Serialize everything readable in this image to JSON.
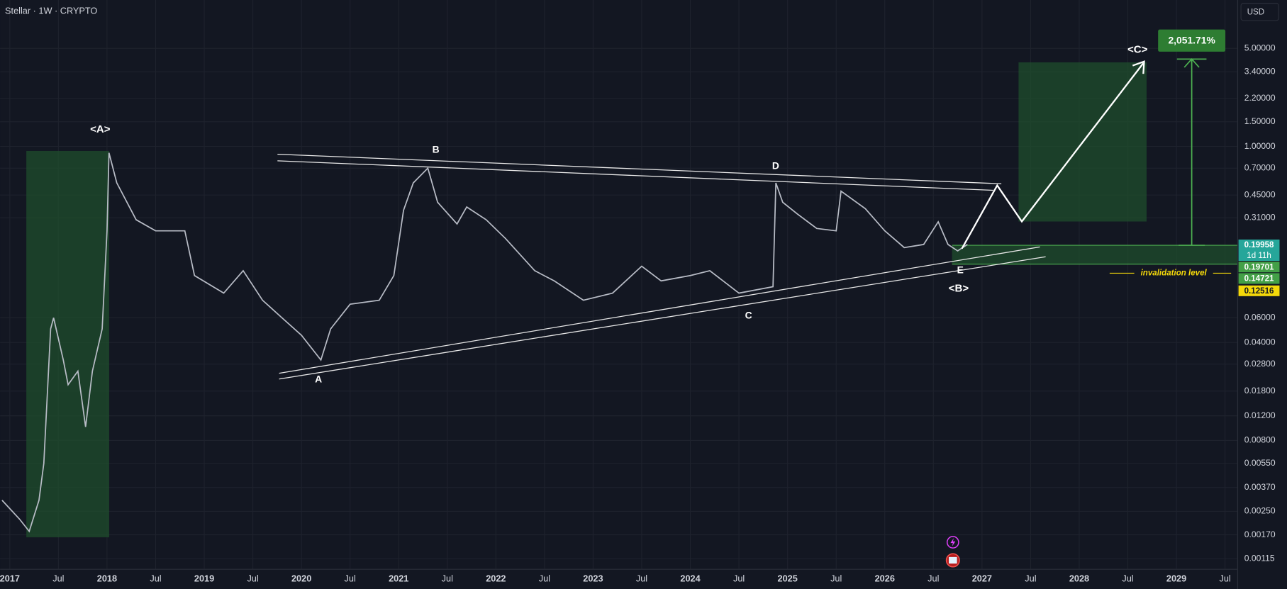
{
  "header": {
    "title": "Stellar · 1W · CRYPTO",
    "currency": "USD"
  },
  "chart_data": {
    "type": "line",
    "log_scale": true,
    "grid": true,
    "xlim": [
      2016.9,
      2029.63
    ],
    "ylim": [
      0.000965,
      11.07
    ],
    "xticks": [
      2017,
      {
        "value": 2017.5,
        "label": "Jul"
      },
      2018,
      {
        "value": 2018.5,
        "label": "Jul"
      },
      2019,
      {
        "value": 2019.5,
        "label": "Jul"
      },
      2020,
      {
        "value": 2020.5,
        "label": "Jul"
      },
      2021,
      {
        "value": 2021.5,
        "label": "Jul"
      },
      2022,
      {
        "value": 2022.5,
        "label": "Jul"
      },
      2023,
      {
        "value": 2023.5,
        "label": "Jul"
      },
      2024,
      {
        "value": 2024.5,
        "label": "Jul"
      },
      2025,
      {
        "value": 2025.5,
        "label": "Jul"
      },
      2026,
      {
        "value": 2026.5,
        "label": "Jul"
      },
      2027,
      {
        "value": 2027.5,
        "label": "Jul"
      },
      2028,
      {
        "value": 2028.5,
        "label": "Jul"
      },
      2029,
      {
        "value": 2029.5,
        "label": "Jul"
      }
    ],
    "yticks": [
      {
        "value": 5,
        "label": "5.00000"
      },
      {
        "value": 3.4,
        "label": "3.40000"
      },
      {
        "value": 2.2,
        "label": "2.20000"
      },
      {
        "value": 1.5,
        "label": "1.50000"
      },
      {
        "value": 1,
        "label": "1.00000"
      },
      {
        "value": 0.7,
        "label": "0.70000"
      },
      {
        "value": 0.45,
        "label": "0.45000"
      },
      {
        "value": 0.31,
        "label": "0.31000"
      },
      {
        "value": 0.06,
        "label": "0.06000"
      },
      {
        "value": 0.04,
        "label": "0.04000"
      },
      {
        "value": 0.028,
        "label": "0.02800"
      },
      {
        "value": 0.018,
        "label": "0.01800"
      },
      {
        "value": 0.012,
        "label": "0.01200"
      },
      {
        "value": 0.008,
        "label": "0.00800"
      },
      {
        "value": 0.0055,
        "label": "0.00550"
      },
      {
        "value": 0.0037,
        "label": "0.00370"
      },
      {
        "value": 0.0025,
        "label": "0.00250"
      },
      {
        "value": 0.0017,
        "label": "0.00170"
      },
      {
        "value": 0.00115,
        "label": "0.00115"
      }
    ],
    "x": [
      2016.92,
      2017.1,
      2017.2,
      2017.3,
      2017.35,
      2017.42,
      2017.45,
      2017.55,
      2017.6,
      2017.7,
      2017.78,
      2017.85,
      2017.95,
      2018.0,
      2018.02,
      2018.1,
      2018.3,
      2018.5,
      2018.8,
      2018.9,
      2019.2,
      2019.4,
      2019.6,
      2019.8,
      2020.0,
      2020.2,
      2020.3,
      2020.5,
      2020.8,
      2020.95,
      2021.05,
      2021.15,
      2021.3,
      2021.4,
      2021.6,
      2021.7,
      2021.9,
      2022.1,
      2022.4,
      2022.6,
      2022.9,
      2023.2,
      2023.5,
      2023.7,
      2024.0,
      2024.2,
      2024.5,
      2024.85,
      2024.88,
      2024.95,
      2025.1,
      2025.3,
      2025.5,
      2025.55,
      2025.8,
      2026.0,
      2026.2,
      2026.4,
      2026.55,
      2026.65,
      2026.75,
      2026.85
    ],
    "series": [
      {
        "color": "#b8bcc6",
        "values": [
          0.003,
          0.0022,
          0.0018,
          0.003,
          0.0055,
          0.05,
          0.06,
          0.03,
          0.02,
          0.025,
          0.01,
          0.025,
          0.05,
          0.25,
          0.9,
          0.55,
          0.3,
          0.25,
          0.25,
          0.12,
          0.09,
          0.13,
          0.08,
          0.06,
          0.045,
          0.03,
          0.05,
          0.075,
          0.08,
          0.12,
          0.35,
          0.55,
          0.7,
          0.4,
          0.28,
          0.37,
          0.3,
          0.22,
          0.13,
          0.11,
          0.08,
          0.09,
          0.14,
          0.11,
          0.12,
          0.13,
          0.09,
          0.1,
          0.55,
          0.4,
          0.33,
          0.26,
          0.25,
          0.48,
          0.36,
          0.25,
          0.19,
          0.2,
          0.29,
          0.2,
          0.18,
          0.2
        ]
      }
    ],
    "price_labels": [
      {
        "value": 0.19958,
        "label": "0.19958",
        "color": "#26a69a"
      },
      {
        "value": 0.19701,
        "label": "0.19701",
        "color": "#43a047"
      },
      {
        "value": 0.14721,
        "label": "0.14721",
        "color": "#43a047"
      },
      {
        "value": 0.12516,
        "label": "0.12516",
        "color": "#f5d90a"
      }
    ],
    "countdown": "1d 11h",
    "annotations": {
      "wave_a_major": "<A>",
      "wave_b_major": "<B>",
      "wave_c_major": "<C>",
      "a": "A",
      "b": "B",
      "c": "C",
      "d": "D",
      "e": "E",
      "target": "2,051.71%",
      "invalidation": "invalidation level"
    }
  }
}
